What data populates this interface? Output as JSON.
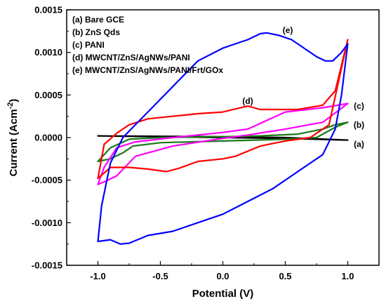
{
  "chart_data": {
    "type": "line",
    "xlabel": "Potential (V)",
    "ylabel_main": "Current (Acm",
    "ylabel_exp": "-2",
    "ylabel_close": ")",
    "xlim": [
      -1.25,
      1.25
    ],
    "ylim": [
      -0.0015,
      0.0015
    ],
    "x_ticks": [
      -1.0,
      -0.5,
      0.0,
      0.5,
      1.0
    ],
    "x_tick_labels": [
      "-1.0",
      "-0.5",
      "0.0",
      "0.5",
      "1.0"
    ],
    "y_ticks": [
      -0.0015,
      -0.001,
      -0.0005,
      0.0,
      0.0005,
      0.001,
      0.0015
    ],
    "y_tick_labels": [
      "-0.0015",
      "-0.0010",
      "-0.0005",
      "0.0000",
      "0.0005",
      "0.0010",
      "0.0015"
    ],
    "legend_placement": "top-left",
    "grid": false,
    "series": [
      {
        "name": "(a) Bare GCE",
        "label": "(a)",
        "color": "#000000",
        "points": [
          [
            -1.0,
            2e-05
          ],
          [
            -0.5,
            1.5e-05
          ],
          [
            0.0,
            1e-05
          ],
          [
            0.5,
            0.0
          ],
          [
            1.0,
            -3e-05
          ],
          [
            0.5,
            -1e-05
          ],
          [
            0.0,
            0.0
          ],
          [
            -0.5,
            1e-05
          ],
          [
            -1.0,
            2e-05
          ]
        ]
      },
      {
        "name": "(b) ZnS Qds",
        "label": "(b)",
        "color": "#1a7a1a",
        "points": [
          [
            -1.0,
            -0.00028
          ],
          [
            -0.9,
            -0.00012
          ],
          [
            -0.75,
            -2e-05
          ],
          [
            -0.5,
            0.0
          ],
          [
            0.0,
            1e-05
          ],
          [
            0.3,
            2e-05
          ],
          [
            0.6,
            4e-05
          ],
          [
            0.8,
            0.0001
          ],
          [
            0.9,
            0.00015
          ],
          [
            1.0,
            0.00018
          ],
          [
            0.9,
            0.00012
          ],
          [
            0.75,
            0.0
          ],
          [
            0.5,
            -2e-05
          ],
          [
            0.0,
            -4e-05
          ],
          [
            -0.5,
            -6e-05
          ],
          [
            -0.72,
            -0.0001
          ],
          [
            -0.8,
            -0.00018
          ],
          [
            -0.9,
            -0.00025
          ],
          [
            -1.0,
            -0.00028
          ]
        ]
      },
      {
        "name": "(c) PANI",
        "label": "(c)",
        "color": "#ff00ff",
        "points": [
          [
            -1.0,
            -0.00055
          ],
          [
            -0.95,
            -0.00035
          ],
          [
            -0.85,
            -0.00012
          ],
          [
            -0.7,
            -5e-05
          ],
          [
            -0.4,
            0.0
          ],
          [
            0.0,
            6e-05
          ],
          [
            0.2,
            0.0001
          ],
          [
            0.5,
            0.0003
          ],
          [
            0.8,
            0.00035
          ],
          [
            1.0,
            0.0004
          ],
          [
            0.8,
            0.00018
          ],
          [
            0.5,
            0.0001
          ],
          [
            0.2,
            3e-05
          ],
          [
            0.0,
            -1e-05
          ],
          [
            -0.4,
            -0.0001
          ],
          [
            -0.7,
            -0.00022
          ],
          [
            -0.85,
            -0.00045
          ],
          [
            -0.95,
            -0.00052
          ],
          [
            -1.0,
            -0.00055
          ]
        ]
      },
      {
        "name": "(d) MWCNT/ZnS/AgNWs/PANI",
        "label": "(d)",
        "color": "#ff0000",
        "points": [
          [
            -1.0,
            -0.00048
          ],
          [
            -0.9,
            -0.00035
          ],
          [
            -0.75,
            -0.00035
          ],
          [
            -0.6,
            -0.00037
          ],
          [
            -0.45,
            -0.0004
          ],
          [
            -0.35,
            -0.00036
          ],
          [
            -0.2,
            -0.00028
          ],
          [
            0.0,
            -0.00025
          ],
          [
            0.1,
            -0.00022
          ],
          [
            0.3,
            -0.0001
          ],
          [
            0.5,
            -4e-05
          ],
          [
            0.7,
            0.0
          ],
          [
            0.85,
            0.00015
          ],
          [
            1.0,
            0.00115
          ],
          [
            0.9,
            0.00055
          ],
          [
            0.8,
            0.00038
          ],
          [
            0.6,
            0.00033
          ],
          [
            0.4,
            0.00033
          ],
          [
            0.3,
            0.00033
          ],
          [
            0.2,
            0.00037
          ],
          [
            0.0,
            0.0003
          ],
          [
            -0.2,
            0.00028
          ],
          [
            -0.4,
            0.00025
          ],
          [
            -0.6,
            0.00022
          ],
          [
            -0.75,
            0.00015
          ],
          [
            -0.85,
            5e-05
          ],
          [
            -0.95,
            -8e-05
          ],
          [
            -1.0,
            -0.00048
          ]
        ]
      },
      {
        "name": "(e) MWCNT/ZnS/AgNWs/PANI/Frt/GOx",
        "label": "(e)",
        "color": "#0000ff",
        "points": [
          [
            -1.0,
            -0.00122
          ],
          [
            -0.9,
            -0.0012
          ],
          [
            -0.82,
            -0.00125
          ],
          [
            -0.75,
            -0.00124
          ],
          [
            -0.6,
            -0.00115
          ],
          [
            -0.4,
            -0.0011
          ],
          [
            -0.2,
            -0.001
          ],
          [
            0.0,
            -0.0009
          ],
          [
            0.2,
            -0.00075
          ],
          [
            0.4,
            -0.0006
          ],
          [
            0.6,
            -0.0004
          ],
          [
            0.8,
            -0.0002
          ],
          [
            0.9,
            0.0001
          ],
          [
            0.95,
            0.0005
          ],
          [
            1.0,
            0.0011
          ],
          [
            0.95,
            0.001
          ],
          [
            0.88,
            0.0009
          ],
          [
            0.82,
            0.0009
          ],
          [
            0.75,
            0.00095
          ],
          [
            0.65,
            0.00105
          ],
          [
            0.55,
            0.00115
          ],
          [
            0.45,
            0.0012
          ],
          [
            0.35,
            0.00123
          ],
          [
            0.3,
            0.00122
          ],
          [
            0.2,
            0.00115
          ],
          [
            0.1,
            0.0011
          ],
          [
            0.0,
            0.00105
          ],
          [
            -0.2,
            0.0009
          ],
          [
            -0.4,
            0.0006
          ],
          [
            -0.6,
            0.0003
          ],
          [
            -0.72,
            0.00012
          ],
          [
            -0.8,
            0.0
          ],
          [
            -0.9,
            -0.0003
          ],
          [
            -0.97,
            -0.0008
          ],
          [
            -1.0,
            -0.00122
          ]
        ]
      }
    ],
    "curve_labels": [
      {
        "text": "(a)",
        "x": 1.09,
        "y": -8e-05
      },
      {
        "text": "(b)",
        "x": 1.09,
        "y": 0.00015
      },
      {
        "text": "(c)",
        "x": 1.09,
        "y": 0.00037
      },
      {
        "text": "(d)",
        "x": 0.2,
        "y": 0.00043
      },
      {
        "text": "(e)",
        "x": 0.52,
        "y": 0.00126
      }
    ]
  }
}
